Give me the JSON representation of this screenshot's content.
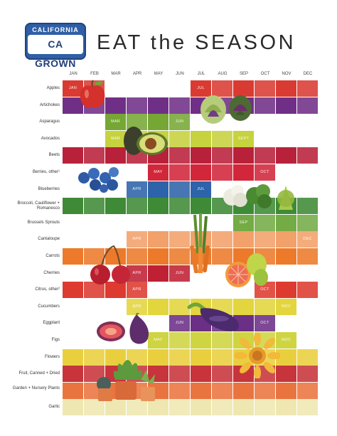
{
  "header": {
    "plate_top": "CALIFORNIA",
    "plate_main": "CA GROWN",
    "title": "EAT the SEASON"
  },
  "months": [
    "JAN",
    "FEB",
    "MAR",
    "APR",
    "MAY",
    "JUN",
    "JUL",
    "AUG",
    "SEP",
    "OCT",
    "NOV",
    "DEC"
  ],
  "rows": [
    {
      "label": "Apples",
      "color": "#d93b32",
      "months": [
        1,
        2,
        7,
        8,
        9,
        10,
        11,
        12
      ],
      "tags": [
        {
          "m": 1,
          "text": "JAN"
        },
        {
          "m": 7,
          "text": "JUL"
        }
      ]
    },
    {
      "label": "Artichokes",
      "color": "#6f2f86",
      "months": [
        1,
        2,
        3,
        4,
        5,
        6,
        7,
        8,
        9,
        10,
        11,
        12
      ],
      "tags": []
    },
    {
      "label": "Asparagus",
      "color": "#76a735",
      "months": [
        3,
        4,
        5,
        6
      ],
      "tags": [
        {
          "m": 3,
          "text": "MAR"
        },
        {
          "m": 6,
          "text": "JUN"
        }
      ]
    },
    {
      "label": "Avocados",
      "color": "#c6d23e",
      "months": [
        3,
        4,
        5,
        6,
        7,
        8,
        9
      ],
      "tags": [
        {
          "m": 3,
          "text": "MAR"
        },
        {
          "m": 9,
          "text": "SEPT"
        }
      ]
    },
    {
      "label": "Beets",
      "color": "#b8213a",
      "months": [
        1,
        2,
        3,
        4,
        5,
        6,
        7,
        8,
        9,
        10,
        11,
        12
      ],
      "tags": []
    },
    {
      "label": "Berries, other¹",
      "color": "#d2263a",
      "months": [
        5,
        6,
        7,
        8,
        9,
        10
      ],
      "tags": [
        {
          "m": 5,
          "text": "MAY"
        },
        {
          "m": 10,
          "text": "OCT"
        }
      ]
    },
    {
      "label": "Blueberries",
      "color": "#2d63a8",
      "months": [
        4,
        5,
        6,
        7
      ],
      "tags": [
        {
          "m": 4,
          "text": "APR"
        },
        {
          "m": 7,
          "text": "JUL"
        }
      ]
    },
    {
      "label": "Broccoli, Cauliflower + Romanesco",
      "color": "#3f8a36",
      "months": [
        1,
        2,
        3,
        4,
        5,
        6,
        7,
        8,
        9,
        10,
        11,
        12
      ],
      "tags": []
    },
    {
      "label": "Brussels Sprouts",
      "color": "#74ab45",
      "months": [
        9,
        10,
        11,
        12
      ],
      "tags": [
        {
          "m": 9,
          "text": "SEP"
        }
      ]
    },
    {
      "label": "Cantaloupe",
      "color": "#f2a16a",
      "months": [
        4,
        5,
        6,
        7,
        8,
        9,
        10,
        11,
        12
      ],
      "tags": [
        {
          "m": 4,
          "text": "APR"
        },
        {
          "m": 12,
          "text": "DEC"
        }
      ]
    },
    {
      "label": "Carrots",
      "color": "#ec7a2a",
      "months": [
        1,
        2,
        3,
        4,
        5,
        6,
        7,
        8,
        9,
        10,
        11,
        12
      ],
      "tags": []
    },
    {
      "label": "Cherries",
      "color": "#bf2034",
      "months": [
        4,
        5,
        6
      ],
      "tags": [
        {
          "m": 4,
          "text": "APR"
        },
        {
          "m": 6,
          "text": "JUN"
        }
      ]
    },
    {
      "label": "Citrus, other²",
      "color": "#dd3a30",
      "months": [
        1,
        2,
        3,
        4,
        10,
        11,
        12
      ],
      "tags": [
        {
          "m": 4,
          "text": "APR"
        },
        {
          "m": 10,
          "text": "OCT"
        }
      ]
    },
    {
      "label": "Cucumbers",
      "color": "#e3d53d",
      "months": [
        4,
        5,
        6,
        7,
        8,
        9,
        10,
        11
      ],
      "tags": [
        {
          "m": 4,
          "text": "APR"
        },
        {
          "m": 11,
          "text": "NOV"
        }
      ]
    },
    {
      "label": "Eggplant",
      "color": "#6b2f86",
      "months": [
        6,
        7,
        8,
        9,
        10
      ],
      "tags": [
        {
          "m": 6,
          "text": "JUN"
        },
        {
          "m": 10,
          "text": "OCT"
        }
      ]
    },
    {
      "label": "Figs",
      "color": "#cfd441",
      "months": [
        5,
        6,
        7,
        8,
        9,
        10,
        11
      ],
      "tags": [
        {
          "m": 5,
          "text": "MAY"
        },
        {
          "m": 11,
          "text": "NOV"
        }
      ]
    },
    {
      "label": "Flowers",
      "color": "#e9cf3e",
      "months": [
        1,
        2,
        3,
        4,
        5,
        6,
        7,
        8,
        9,
        10,
        11,
        12
      ],
      "tags": []
    },
    {
      "label": "Fruit, Canned + Dried",
      "color": "#c7343b",
      "months": [
        1,
        2,
        3,
        4,
        5,
        6,
        7,
        8,
        9,
        10,
        11,
        12
      ],
      "tags": []
    },
    {
      "label": "Garden + Nursery Plants",
      "color": "#ea7440",
      "months": [
        1,
        2,
        3,
        4,
        5,
        6,
        7,
        8,
        9,
        10,
        11,
        12
      ],
      "tags": []
    },
    {
      "label": "Garlic",
      "color": "#efe7b1",
      "months": [
        1,
        2,
        3,
        4,
        5,
        6,
        7,
        8,
        9,
        10,
        11,
        12
      ],
      "tags": []
    }
  ],
  "colors": {
    "title": "#2a2a2a",
    "plate": "#2f5fa6"
  },
  "illustrations": [
    "apple-icon",
    "artichoke-icon",
    "avocado-icon",
    "blueberries-icon",
    "vegetables-icon",
    "asparagus-icon",
    "cherries-icon",
    "grapefruit-icon",
    "eggplant-icon",
    "fig-icon",
    "sunflower-icon",
    "succulent-plants-icon"
  ]
}
